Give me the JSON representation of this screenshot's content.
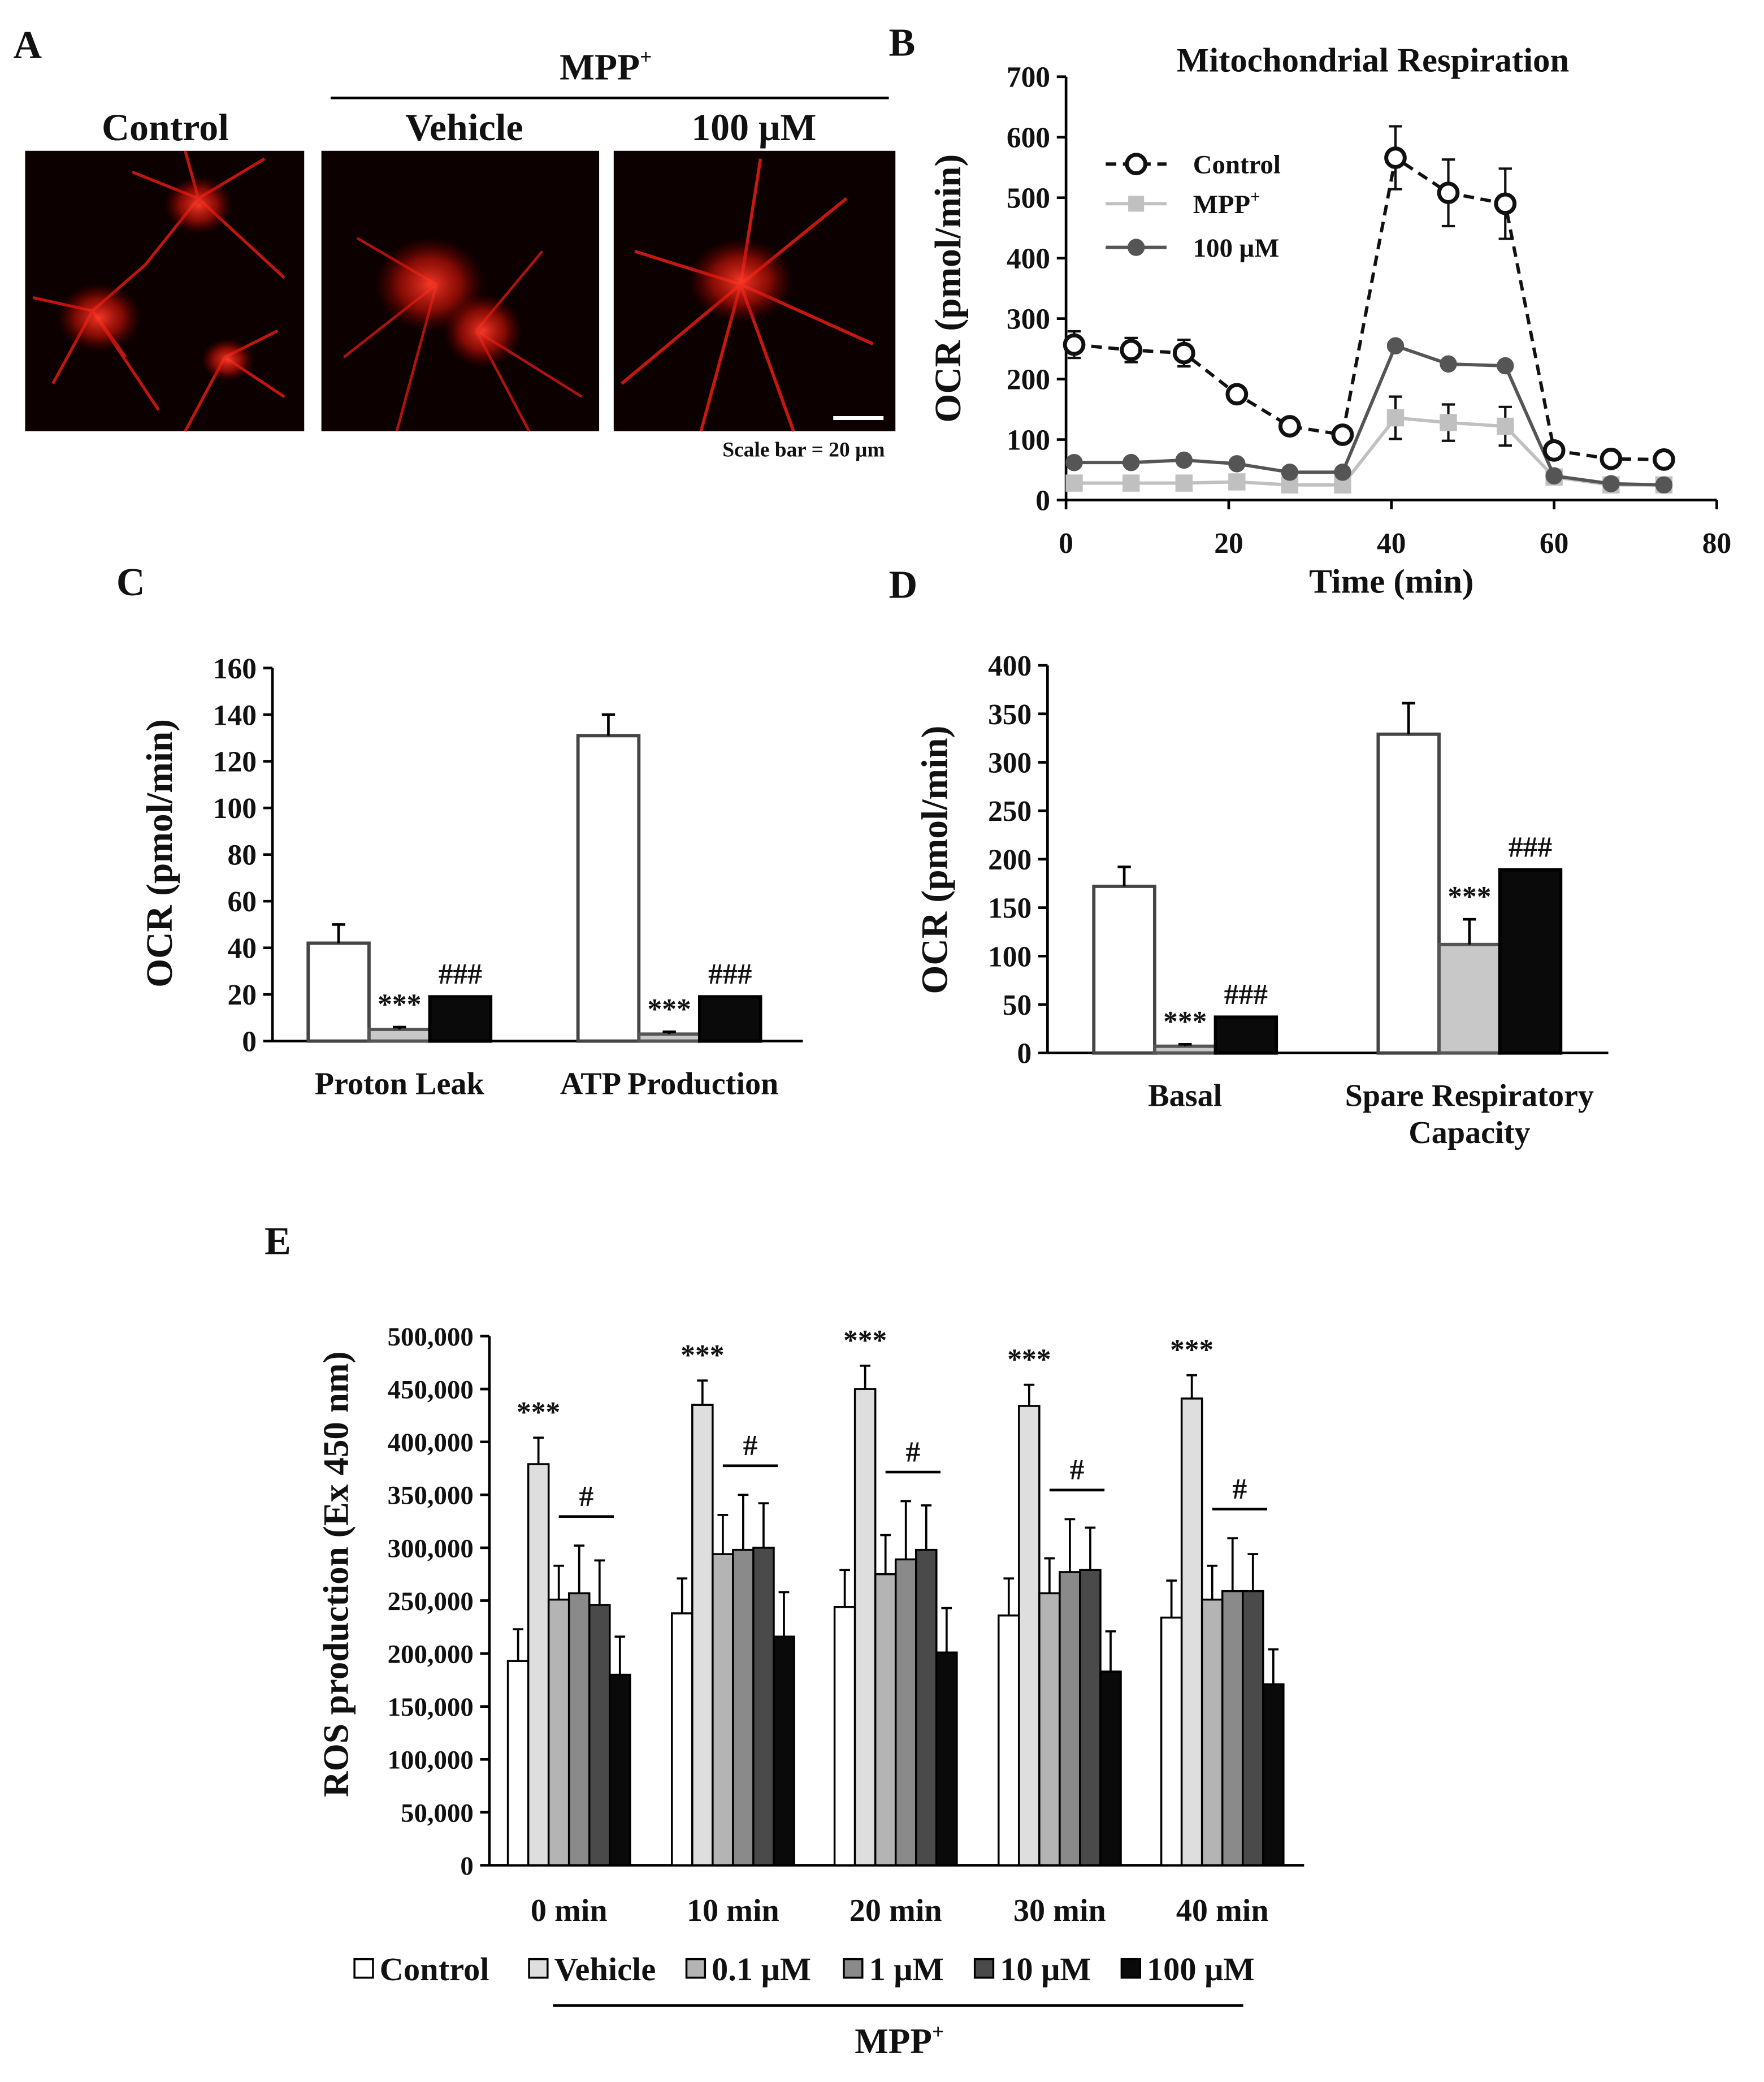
{
  "panels": {
    "A": {
      "letter": "A",
      "group_label": "MPP",
      "group_sup": "+",
      "headers": [
        "Control",
        "Vehicle",
        "100 μM"
      ],
      "scale_label": "Scale bar = 20 μm"
    },
    "B": {
      "letter": "B"
    },
    "C": {
      "letter": "C"
    },
    "D": {
      "letter": "D"
    },
    "E": {
      "letter": "E"
    }
  },
  "colors": {
    "control": "#ffffff",
    "mpp": "#c8c8c8",
    "treat100": "#0a0a0a",
    "line_mpp": "#c0c0c0",
    "line_100": "#555555",
    "e_palette": [
      "#ffffff",
      "#dedede",
      "#b4b4b4",
      "#8a8a8a",
      "#4a4a4a",
      "#0a0a0a"
    ]
  },
  "chart_data": [
    {
      "panel": "B",
      "type": "line",
      "title": "Mitochondrial Respiration",
      "xlabel": "Time (min)",
      "ylabel": "OCR (pmol/min)",
      "xlim": [
        0,
        80
      ],
      "ylim": [
        0,
        700
      ],
      "xticks": [
        0,
        20,
        40,
        60,
        80
      ],
      "yticks": [
        0,
        100,
        200,
        300,
        400,
        500,
        600,
        700
      ],
      "legend_position": "top-left",
      "x": [
        1,
        8,
        14.5,
        21,
        27.5,
        34,
        40.5,
        47,
        54,
        60,
        67,
        73.5
      ],
      "series": [
        {
          "name": "Control",
          "sup": "",
          "style": "dashed-open",
          "values": [
            257,
            248,
            243,
            175,
            122,
            108,
            566,
            508,
            490,
            82,
            68,
            67
          ],
          "errors": [
            22,
            20,
            22,
            0,
            0,
            0,
            52,
            55,
            58,
            0,
            0,
            0
          ]
        },
        {
          "name": "MPP",
          "sup": "+",
          "style": "light-square",
          "values": [
            28,
            28,
            28,
            30,
            25,
            25,
            136,
            128,
            122,
            38,
            25,
            25
          ],
          "errors": [
            0,
            0,
            0,
            0,
            0,
            0,
            35,
            30,
            32,
            0,
            0,
            0
          ]
        },
        {
          "name": "100 μM",
          "sup": "",
          "style": "dark-dot",
          "values": [
            62,
            62,
            66,
            60,
            46,
            46,
            255,
            225,
            222,
            40,
            27,
            25
          ],
          "errors": [
            0,
            0,
            0,
            0,
            0,
            0,
            0,
            0,
            0,
            0,
            0,
            0
          ]
        }
      ]
    },
    {
      "panel": "C",
      "type": "bar",
      "xlabel": "",
      "ylabel": "OCR (pmol/min)",
      "ylim": [
        0,
        160
      ],
      "yticks": [
        0,
        20,
        40,
        60,
        80,
        100,
        120,
        140,
        160
      ],
      "categories": [
        "Proton Leak",
        "ATP Production"
      ],
      "series": [
        {
          "key": "control",
          "values": [
            42,
            131
          ],
          "errors": [
            8,
            9
          ]
        },
        {
          "key": "mpp",
          "values": [
            5,
            3
          ],
          "errors": [
            1,
            1
          ]
        },
        {
          "key": "treat100",
          "values": [
            19,
            19
          ],
          "errors": [
            0,
            0
          ]
        }
      ],
      "annotations": [
        {
          "category": 0,
          "series": 1,
          "text": "***"
        },
        {
          "category": 0,
          "series": 2,
          "text": "###"
        },
        {
          "category": 1,
          "series": 1,
          "text": "***"
        },
        {
          "category": 1,
          "series": 2,
          "text": "###"
        }
      ]
    },
    {
      "panel": "D",
      "type": "bar",
      "xlabel": "",
      "ylabel": "OCR (pmol/min)",
      "ylim": [
        0,
        400
      ],
      "yticks": [
        0,
        50,
        100,
        150,
        200,
        250,
        300,
        350,
        400
      ],
      "categories": [
        "Basal",
        "Spare Respiratory\nCapacity"
      ],
      "series": [
        {
          "key": "control",
          "values": [
            172,
            329
          ],
          "errors": [
            20,
            32
          ]
        },
        {
          "key": "mpp",
          "values": [
            7,
            112
          ],
          "errors": [
            2,
            26
          ]
        },
        {
          "key": "treat100",
          "values": [
            37,
            189
          ],
          "errors": [
            0,
            0
          ]
        }
      ],
      "annotations": [
        {
          "category": 0,
          "series": 1,
          "text": "***"
        },
        {
          "category": 0,
          "series": 2,
          "text": "###"
        },
        {
          "category": 1,
          "series": 1,
          "text": "***"
        },
        {
          "category": 1,
          "series": 2,
          "text": "###"
        }
      ]
    },
    {
      "panel": "E",
      "type": "bar",
      "xlabel": "",
      "ylabel": "ROS production (Ex 450 nm)",
      "ylim": [
        0,
        500000
      ],
      "yticks": [
        0,
        50000,
        100000,
        150000,
        200000,
        250000,
        300000,
        350000,
        400000,
        450000,
        500000
      ],
      "ytick_labels": [
        "0",
        "50,000",
        "100,000",
        "150,000",
        "200,000",
        "250,000",
        "300,000",
        "350,000",
        "400,000",
        "450,000",
        "500,000"
      ],
      "categories": [
        "0 min",
        "10 min",
        "20 min",
        "30 min",
        "40 min"
      ],
      "series": [
        {
          "name": "Control",
          "values": [
            193000,
            238000,
            244000,
            236000,
            234000
          ],
          "errors": [
            30000,
            33000,
            35000,
            35000,
            35000
          ]
        },
        {
          "name": "Vehicle",
          "values": [
            379000,
            435000,
            450000,
            434000,
            441000
          ],
          "errors": [
            25000,
            23000,
            22000,
            20000,
            22000
          ]
        },
        {
          "name": "0.1 μM",
          "values": [
            251000,
            294000,
            275000,
            257000,
            251000
          ],
          "errors": [
            32000,
            37000,
            37000,
            33000,
            32000
          ]
        },
        {
          "name": "1 μM",
          "values": [
            257000,
            298000,
            289000,
            277000,
            259000
          ],
          "errors": [
            45000,
            52000,
            55000,
            50000,
            50000
          ]
        },
        {
          "name": "10 μM",
          "values": [
            246000,
            300000,
            298000,
            279000,
            259000
          ],
          "errors": [
            42000,
            42000,
            42000,
            40000,
            35000
          ]
        },
        {
          "name": "100 μM",
          "values": [
            180000,
            216000,
            201000,
            183000,
            171000
          ],
          "errors": [
            36000,
            42000,
            42000,
            38000,
            33000
          ]
        }
      ],
      "annotations": [
        {
          "text": "***",
          "target": "Vehicle"
        },
        {
          "text": "#",
          "target": "0.1 μM–100 μM"
        }
      ],
      "legend_group_label": "MPP",
      "legend_group_sup": "+"
    }
  ]
}
